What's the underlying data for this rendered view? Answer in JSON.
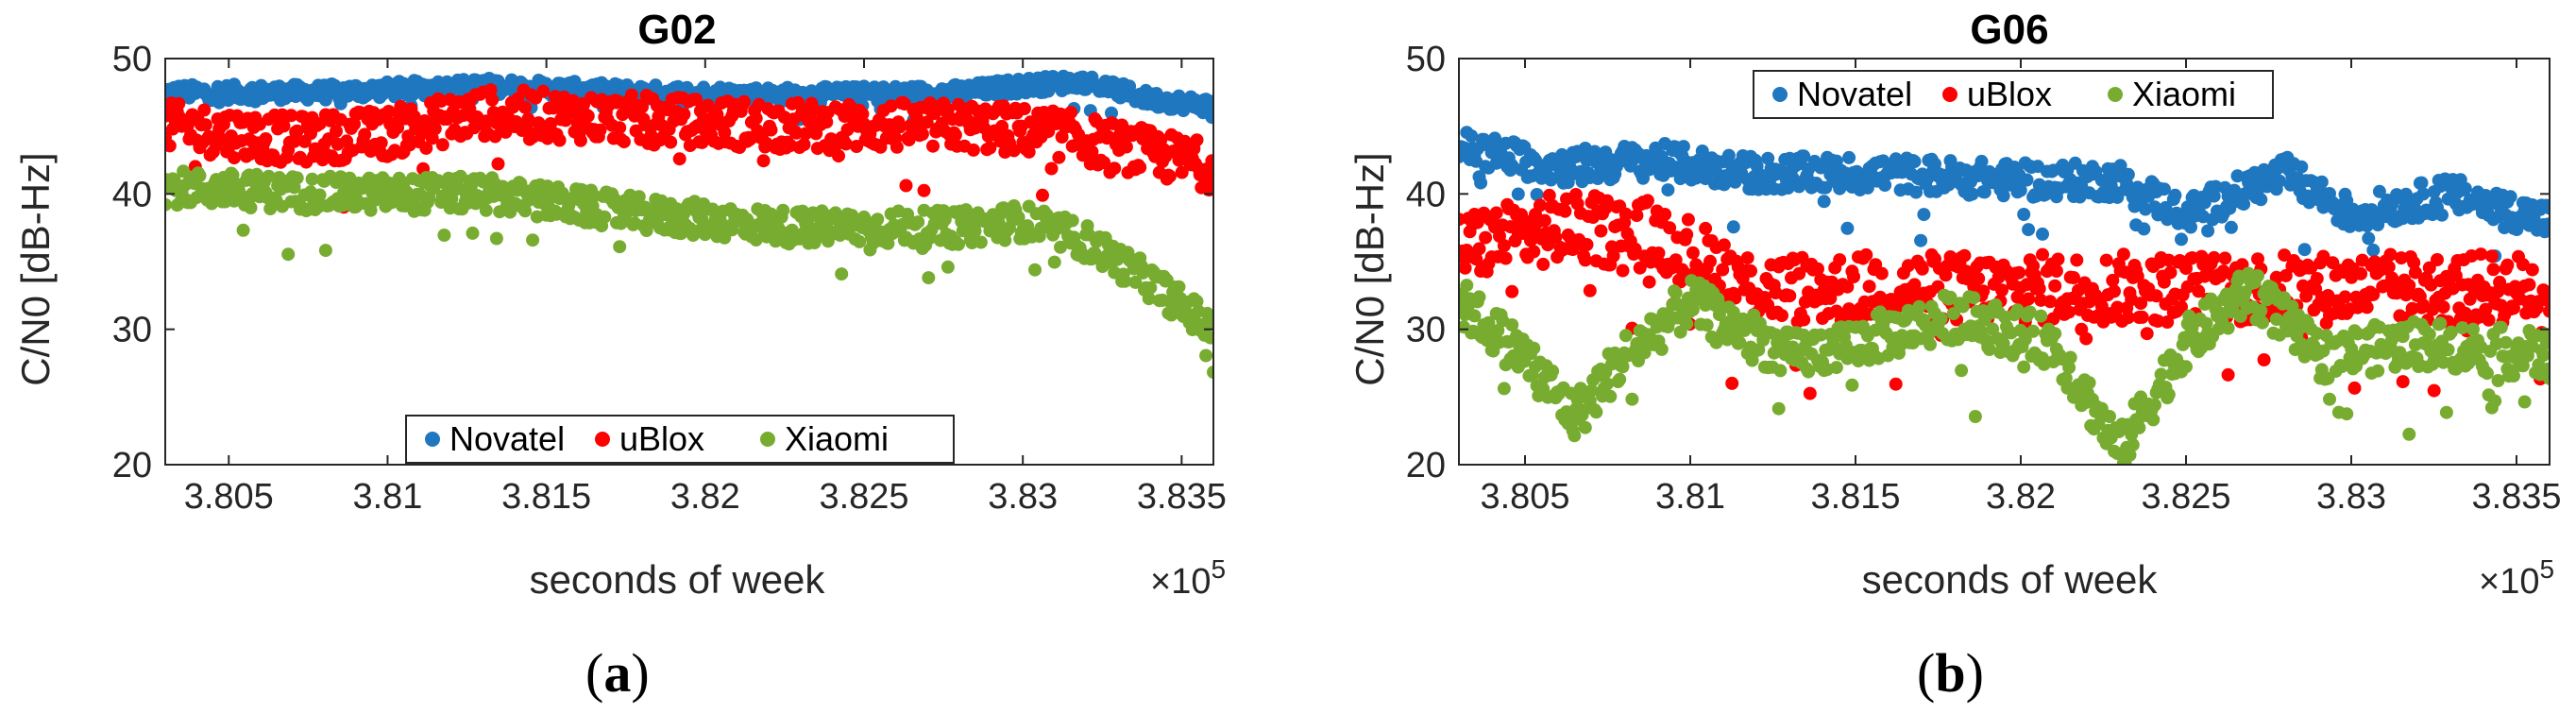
{
  "chart_data": [
    {
      "type": "scatter",
      "panel": "a",
      "title": "G02",
      "xlabel": "seconds of week",
      "ylabel": "C/N0 [dB-Hz]",
      "x_multiplier": "×10",
      "x_exponent": "5",
      "xlim": [
        380300,
        383600
      ],
      "ylim": [
        20,
        50
      ],
      "xticks": [
        380500,
        381000,
        381500,
        382000,
        382500,
        383000,
        383500
      ],
      "xtick_labels": [
        "3.805",
        "3.81",
        "3.815",
        "3.82",
        "3.825",
        "3.83",
        "3.835"
      ],
      "yticks": [
        20,
        30,
        40,
        50
      ],
      "ytick_labels": [
        "20",
        "30",
        "40",
        "50"
      ],
      "legend_position": "bottom-center",
      "series": [
        {
          "name": "Novatel",
          "color": "#1f77bf",
          "approx_trend": [
            [
              380300,
              47.5
            ],
            [
              380800,
              47.5
            ],
            [
              381300,
              48.0
            ],
            [
              381800,
              47.5
            ],
            [
              382300,
              47.3
            ],
            [
              382800,
              47.5
            ],
            [
              383000,
              48.0
            ],
            [
              383200,
              48.3
            ],
            [
              383400,
              47.0
            ],
            [
              383600,
              46.5
            ]
          ],
          "spread": 0.6
        },
        {
          "name": "uBlox",
          "color": "#ff0000",
          "approx_trend": [
            [
              380300,
              45.0
            ],
            [
              380700,
              44.0
            ],
            [
              381000,
              44.5
            ],
            [
              381300,
              46.0
            ],
            [
              381800,
              45.5
            ],
            [
              382300,
              45.0
            ],
            [
              382800,
              45.0
            ],
            [
              383100,
              44.5
            ],
            [
              383400,
              43.0
            ],
            [
              383600,
              42.0
            ]
          ],
          "spread": 1.8
        },
        {
          "name": "Xiaomi",
          "color": "#77ac30",
          "approx_trend": [
            [
              380300,
              40.5
            ],
            [
              380800,
              40.0
            ],
            [
              381300,
              40.0
            ],
            [
              381800,
              38.5
            ],
            [
              382300,
              37.5
            ],
            [
              382800,
              37.5
            ],
            [
              383000,
              38.0
            ],
            [
              383200,
              36.5
            ],
            [
              383400,
              33.5
            ],
            [
              383600,
              30.0
            ]
          ],
          "spread": 1.3
        }
      ],
      "legend": [
        "Novatel",
        "uBlox",
        "Xiaomi"
      ]
    },
    {
      "type": "scatter",
      "panel": "b",
      "title": "G06",
      "xlabel": "seconds of week",
      "ylabel": "C/N0 [dB-Hz]",
      "x_multiplier": "×10",
      "x_exponent": "5",
      "xlim": [
        380300,
        383600
      ],
      "ylim": [
        20,
        50
      ],
      "xticks": [
        380500,
        381000,
        381500,
        382000,
        382500,
        383000,
        383500
      ],
      "xtick_labels": [
        "3.805",
        "3.81",
        "3.815",
        "3.82",
        "3.825",
        "3.83",
        "3.835"
      ],
      "yticks": [
        20,
        30,
        40,
        50
      ],
      "ytick_labels": [
        "20",
        "30",
        "40",
        "50"
      ],
      "legend_position": "top-center",
      "series": [
        {
          "name": "Novatel",
          "color": "#1f77bf",
          "approx_trend": [
            [
              380300,
              43.5
            ],
            [
              380600,
              42.0
            ],
            [
              380900,
              42.5
            ],
            [
              381200,
              41.5
            ],
            [
              381600,
              41.5
            ],
            [
              382000,
              41.0
            ],
            [
              382300,
              41.0
            ],
            [
              382500,
              38.5
            ],
            [
              382800,
              41.5
            ],
            [
              383000,
              38.5
            ],
            [
              383300,
              40.0
            ],
            [
              383600,
              38.0
            ]
          ],
          "spread": 1.3
        },
        {
          "name": "uBlox",
          "color": "#ff0000",
          "approx_trend": [
            [
              380300,
              36.0
            ],
            [
              380600,
              37.5
            ],
            [
              380900,
              37.0
            ],
            [
              381200,
              33.0
            ],
            [
              381600,
              33.0
            ],
            [
              382000,
              33.0
            ],
            [
              382300,
              33.0
            ],
            [
              382600,
              33.0
            ],
            [
              383000,
              33.0
            ],
            [
              383300,
              33.0
            ],
            [
              383600,
              33.0
            ]
          ],
          "spread": 2.6
        },
        {
          "name": "Xiaomi",
          "color": "#77ac30",
          "approx_trend": [
            [
              380300,
              32.0
            ],
            [
              380500,
              28.0
            ],
            [
              380650,
              23.5
            ],
            [
              380800,
              28.0
            ],
            [
              381000,
              32.0
            ],
            [
              381300,
              28.0
            ],
            [
              381500,
              29.0
            ],
            [
              381800,
              31.0
            ],
            [
              382100,
              29.0
            ],
            [
              382300,
              21.0
            ],
            [
              382500,
              29.0
            ],
            [
              382700,
              33.0
            ],
            [
              382900,
              28.0
            ],
            [
              383200,
              29.0
            ],
            [
              383600,
              28.0
            ]
          ],
          "spread": 1.8
        }
      ],
      "legend": [
        "Novatel",
        "uBlox",
        "Xiaomi"
      ]
    }
  ],
  "panel_labels": {
    "a": "a",
    "b": "b"
  }
}
